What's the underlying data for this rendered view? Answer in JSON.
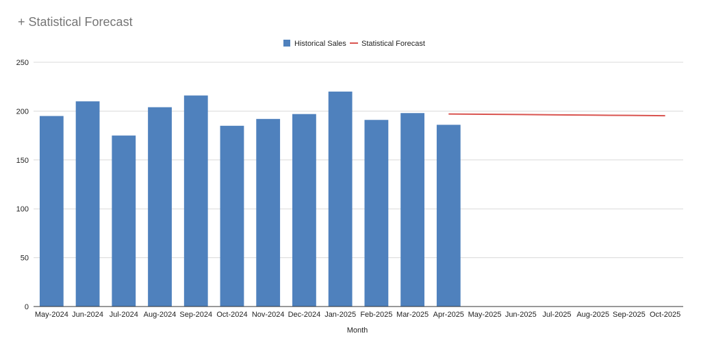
{
  "chart_title": "+ Statistical Forecast",
  "colors": {
    "bar": "#4f81bd",
    "forecast": "#d9534f",
    "grid": "#d9d9d9",
    "axis": "#333333"
  },
  "chart_data": {
    "type": "bar",
    "title": "+ Statistical Forecast",
    "xlabel": "Month",
    "ylabel": "",
    "ylim": [
      0,
      250
    ],
    "yticks": [
      0,
      50,
      100,
      150,
      200,
      250
    ],
    "grid": true,
    "legend_position": "top",
    "categories": [
      "May-2024",
      "Jun-2024",
      "Jul-2024",
      "Aug-2024",
      "Sep-2024",
      "Oct-2024",
      "Nov-2024",
      "Dec-2024",
      "Jan-2025",
      "Feb-2025",
      "Mar-2025",
      "Apr-2025",
      "May-2025",
      "Jun-2025",
      "Jul-2025",
      "Aug-2025",
      "Sep-2025",
      "Oct-2025"
    ],
    "series": [
      {
        "name": "Historical Sales",
        "type": "bar",
        "values": [
          195,
          210,
          175,
          204,
          216,
          185,
          192,
          197,
          220,
          191,
          198,
          186,
          null,
          null,
          null,
          null,
          null,
          null
        ]
      },
      {
        "name": "Statistical Forecast",
        "type": "line",
        "values": [
          null,
          null,
          null,
          null,
          null,
          null,
          null,
          null,
          null,
          null,
          null,
          197,
          196.8,
          196.5,
          196.2,
          195.9,
          195.6,
          195.3
        ]
      }
    ]
  }
}
